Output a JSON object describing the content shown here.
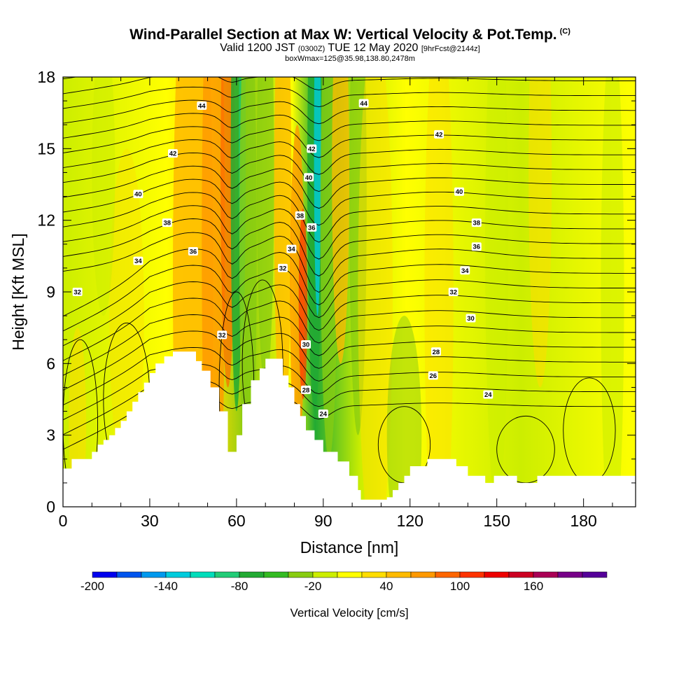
{
  "header": {
    "title": "Wind-Parallel Section at Max W: Vertical Velocity & Pot.Temp.",
    "copyright": "(C)",
    "valid_prefix": "Valid 1200 JST",
    "valid_utc": "(0300Z)",
    "valid_date": "TUE 12 May 2020",
    "forecast": "[9hrFcst@2144z]",
    "boxwmax": "boxWmax=125@35.98,138.80,2478m"
  },
  "chart_data": {
    "type": "heatmap",
    "xlabel": "Distance [nm]",
    "ylabel": "Height [Kft MSL]",
    "xlim": [
      0,
      198
    ],
    "ylim": [
      0,
      18
    ],
    "x_ticks": [
      0,
      30,
      60,
      90,
      120,
      150,
      180
    ],
    "y_ticks": [
      0,
      3,
      6,
      9,
      12,
      15,
      18
    ],
    "x_tick_labels": [
      "0",
      "30",
      "60",
      "90",
      "120",
      "150",
      "180"
    ],
    "y_tick_labels": [
      "0",
      "3",
      "6",
      "9",
      "12",
      "15",
      "18"
    ],
    "colorbar": {
      "label": "Vertical Velocity [cm/s]",
      "tick_labels": [
        "-200",
        "-140",
        "-80",
        "-20",
        "40",
        "100",
        "160"
      ],
      "tick_values": [
        -200,
        -140,
        -80,
        -20,
        40,
        100,
        160
      ],
      "bounds": [
        -200,
        220
      ],
      "step": 20,
      "colors": [
        "#0000ee",
        "#0055ee",
        "#0099ee",
        "#00ccdd",
        "#00ddbb",
        "#22cc77",
        "#22aa33",
        "#33bb22",
        "#88cc11",
        "#ccee00",
        "#ffff00",
        "#ffdd00",
        "#ffbb00",
        "#ff9900",
        "#ff6600",
        "#ff3300",
        "#ee0000",
        "#cc0022",
        "#aa0055",
        "#770088",
        "#550099"
      ]
    },
    "theta_contour_labels": [
      {
        "x": 5,
        "y": 9.0,
        "label": "32"
      },
      {
        "x": 26,
        "y": 10.3,
        "label": "34"
      },
      {
        "x": 36,
        "y": 11.9,
        "label": "38"
      },
      {
        "x": 26,
        "y": 13.1,
        "label": "40"
      },
      {
        "x": 38,
        "y": 14.8,
        "label": "42"
      },
      {
        "x": 48,
        "y": 16.8,
        "label": "44"
      },
      {
        "x": 45,
        "y": 10.7,
        "label": "36"
      },
      {
        "x": 55,
        "y": 7.2,
        "label": "32"
      },
      {
        "x": 76,
        "y": 10.0,
        "label": "32"
      },
      {
        "x": 79,
        "y": 10.8,
        "label": "34"
      },
      {
        "x": 82,
        "y": 12.2,
        "label": "38"
      },
      {
        "x": 86,
        "y": 11.7,
        "label": "36"
      },
      {
        "x": 85,
        "y": 13.8,
        "label": "40"
      },
      {
        "x": 86,
        "y": 15.0,
        "label": "42"
      },
      {
        "x": 104,
        "y": 16.9,
        "label": "44"
      },
      {
        "x": 84,
        "y": 6.8,
        "label": "30"
      },
      {
        "x": 84,
        "y": 4.9,
        "label": "28"
      },
      {
        "x": 90,
        "y": 3.9,
        "label": "24"
      },
      {
        "x": 130,
        "y": 15.6,
        "label": "42"
      },
      {
        "x": 137,
        "y": 13.2,
        "label": "40"
      },
      {
        "x": 143,
        "y": 11.9,
        "label": "38"
      },
      {
        "x": 143,
        "y": 10.9,
        "label": "36"
      },
      {
        "x": 139,
        "y": 9.9,
        "label": "34"
      },
      {
        "x": 135,
        "y": 9.0,
        "label": "32"
      },
      {
        "x": 141,
        "y": 7.9,
        "label": "30"
      },
      {
        "x": 129,
        "y": 6.5,
        "label": "28"
      },
      {
        "x": 128,
        "y": 5.5,
        "label": "26"
      },
      {
        "x": 147,
        "y": 4.7,
        "label": "24"
      }
    ]
  }
}
